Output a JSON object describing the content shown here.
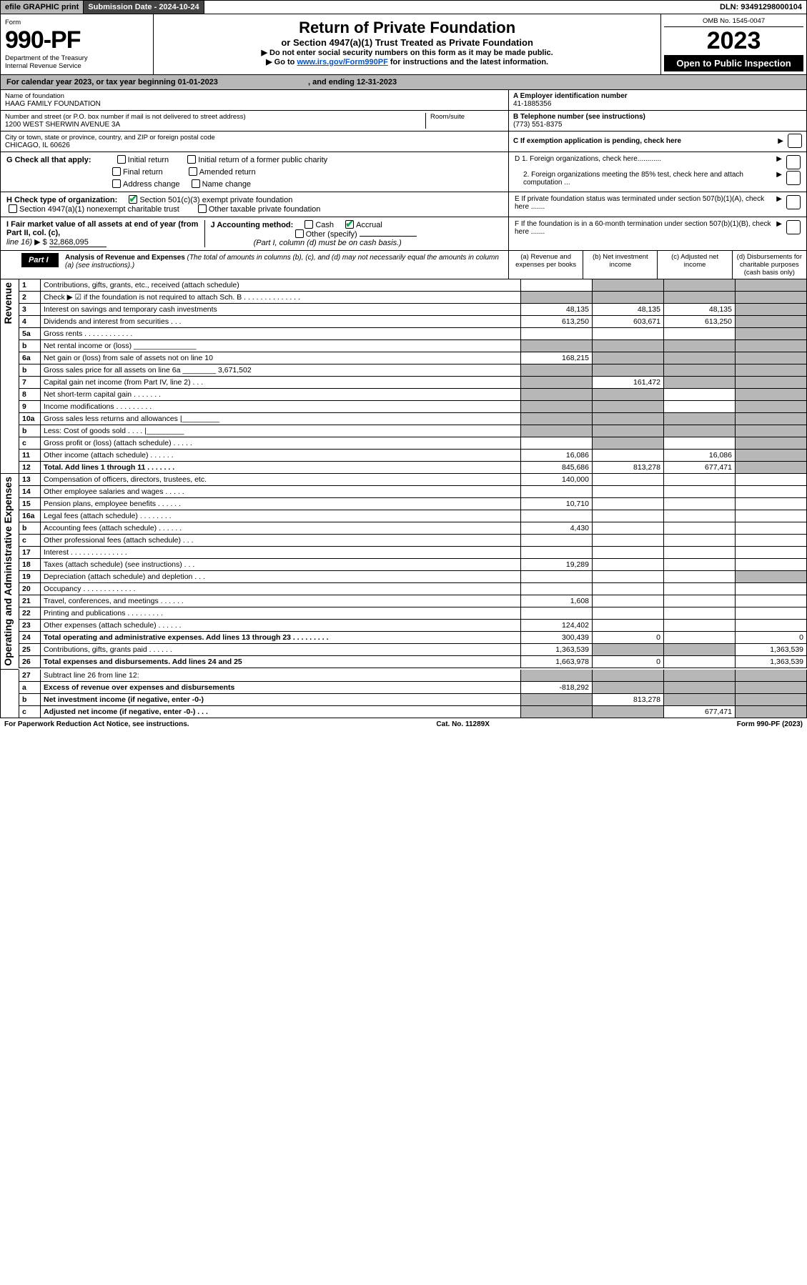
{
  "topbar": {
    "efile": "efile GRAPHIC print",
    "subdate_label": "Submission Date - 2024-10-24",
    "dln": "DLN: 93491298000104"
  },
  "header": {
    "form_word": "Form",
    "form_no": "990-PF",
    "dept": "Department of the Treasury",
    "irs": "Internal Revenue Service",
    "title": "Return of Private Foundation",
    "subtitle": "or Section 4947(a)(1) Trust Treated as Private Foundation",
    "instr1": "▶ Do not enter social security numbers on this form as it may be made public.",
    "instr2_pre": "▶ Go to ",
    "instr2_link": "www.irs.gov/Form990PF",
    "instr2_post": " for instructions and the latest information.",
    "omb": "OMB No. 1545-0047",
    "year": "2023",
    "open": "Open to Public Inspection"
  },
  "calyear": {
    "text_a": "For calendar year 2023, or tax year beginning 01-01-2023",
    "text_b": ", and ending 12-31-2023"
  },
  "entity": {
    "name_lbl": "Name of foundation",
    "name": "HAAG FAMILY FOUNDATION",
    "addr_lbl": "Number and street (or P.O. box number if mail is not delivered to street address)",
    "addr": "1200 WEST SHERWIN AVENUE 3A",
    "room_lbl": "Room/suite",
    "city_lbl": "City or town, state or province, country, and ZIP or foreign postal code",
    "city": "CHICAGO, IL  60626",
    "a_lbl": "A Employer identification number",
    "ein": "41-1885356",
    "b_lbl": "B Telephone number (see instructions)",
    "phone": "(773) 551-8375",
    "c_lbl": "C If exemption application is pending, check here"
  },
  "g": {
    "lbl": "G Check all that apply:",
    "c1": "Initial return",
    "c2": "Initial return of a former public charity",
    "c3": "Final return",
    "c4": "Amended return",
    "c5": "Address change",
    "c6": "Name change",
    "d1": "D 1. Foreign organizations, check here............",
    "d2": "2. Foreign organizations meeting the 85% test, check here and attach computation ...",
    "e": "E  If private foundation status was terminated under section 507(b)(1)(A), check here .......",
    "f": "F  If the foundation is in a 60-month termination under section 507(b)(1)(B), check here ......."
  },
  "h": {
    "lbl": "H Check type of organization:",
    "c1": "Section 501(c)(3) exempt private foundation",
    "c2": "Section 4947(a)(1) nonexempt charitable trust",
    "c3": "Other taxable private foundation"
  },
  "i": {
    "lbl": "I Fair market value of all assets at end of year (from Part II, col. (c),",
    "line": "line 16)",
    "amt": "32,868,095"
  },
  "j": {
    "lbl": "J Accounting method:",
    "cash": "Cash",
    "accr": "Accrual",
    "other": "Other (specify)",
    "note": "(Part I, column (d) must be on cash basis.)"
  },
  "part1": {
    "label": "Part I",
    "title": "Analysis of Revenue and Expenses",
    "title_note": " (The total of amounts in columns (b), (c), and (d) may not necessarily equal the amounts in column (a) (see instructions).)",
    "col_a": "(a)  Revenue and expenses per books",
    "col_b": "(b)  Net investment income",
    "col_c": "(c)  Adjusted net income",
    "col_d": "(d)  Disbursements for charitable purposes (cash basis only)"
  },
  "side": {
    "rev": "Revenue",
    "exp": "Operating and Administrative Expenses"
  },
  "rows": [
    {
      "n": "1",
      "d": "Contributions, gifts, grants, etc., received (attach schedule)",
      "a": "",
      "b": "g",
      "c": "g",
      "dd": "g"
    },
    {
      "n": "2",
      "d": "Check ▶ ☑ if the foundation is not required to attach Sch. B   .   .   .   .   .   .   .   .   .   .   .   .   .   .",
      "a": "g",
      "b": "g",
      "c": "g",
      "dd": "g",
      "bold_not": true
    },
    {
      "n": "3",
      "d": "Interest on savings and temporary cash investments",
      "a": "48,135",
      "b": "48,135",
      "c": "48,135",
      "dd": "g"
    },
    {
      "n": "4",
      "d": "Dividends and interest from securities   .   .   .",
      "a": "613,250",
      "b": "603,671",
      "c": "613,250",
      "dd": "g"
    },
    {
      "n": "5a",
      "d": "Gross rents   .   .   .   .   .   .   .   .   .   .   .   .",
      "a": "",
      "b": "",
      "c": "",
      "dd": "g"
    },
    {
      "n": "b",
      "d": "Net rental income or (loss)  _______________",
      "a": "g",
      "b": "g",
      "c": "g",
      "dd": "g"
    },
    {
      "n": "6a",
      "d": "Net gain or (loss) from sale of assets not on line 10",
      "a": "168,215",
      "b": "g",
      "c": "g",
      "dd": "g"
    },
    {
      "n": "b",
      "d": "Gross sales price for all assets on line 6a ________ 3,671,502",
      "a": "g",
      "b": "g",
      "c": "g",
      "dd": "g"
    },
    {
      "n": "7",
      "d": "Capital gain net income (from Part IV, line 2)   .   .   .",
      "a": "g",
      "b": "161,472",
      "c": "g",
      "dd": "g"
    },
    {
      "n": "8",
      "d": "Net short-term capital gain   .   .   .   .   .   .   .",
      "a": "g",
      "b": "g",
      "c": "",
      "dd": "g"
    },
    {
      "n": "9",
      "d": "Income modifications   .   .   .   .   .   .   .   .   .",
      "a": "g",
      "b": "g",
      "c": "",
      "dd": "g"
    },
    {
      "n": "10a",
      "d": "Gross sales less returns and allowances   |_________",
      "a": "g",
      "b": "g",
      "c": "g",
      "dd": "g"
    },
    {
      "n": "b",
      "d": "Less: Cost of goods sold   .   .   .   .   |_________",
      "a": "g",
      "b": "g",
      "c": "g",
      "dd": "g"
    },
    {
      "n": "c",
      "d": "Gross profit or (loss) (attach schedule)   .   .   .   .   .",
      "a": "",
      "b": "g",
      "c": "",
      "dd": "g"
    },
    {
      "n": "11",
      "d": "Other income (attach schedule)   .   .   .   .   .   .",
      "a": "16,086",
      "b": "",
      "c": "16,086",
      "dd": "g"
    },
    {
      "n": "12",
      "d": "Total. Add lines 1 through 11   .   .   .   .   .   .   .",
      "a": "845,686",
      "b": "813,278",
      "c": "677,471",
      "dd": "g",
      "bold": true
    }
  ],
  "rows_exp": [
    {
      "n": "13",
      "d": "Compensation of officers, directors, trustees, etc.",
      "a": "140,000",
      "b": "",
      "c": "",
      "dd": ""
    },
    {
      "n": "14",
      "d": "Other employee salaries and wages   .   .   .   .   .",
      "a": "",
      "b": "",
      "c": "",
      "dd": ""
    },
    {
      "n": "15",
      "d": "Pension plans, employee benefits   .   .   .   .   .   .",
      "a": "10,710",
      "b": "",
      "c": "",
      "dd": ""
    },
    {
      "n": "16a",
      "d": "Legal fees (attach schedule)   .   .   .   .   .   .   .   .",
      "a": "",
      "b": "",
      "c": "",
      "dd": ""
    },
    {
      "n": "b",
      "d": "Accounting fees (attach schedule)   .   .   .   .   .   .",
      "a": "4,430",
      "b": "",
      "c": "",
      "dd": ""
    },
    {
      "n": "c",
      "d": "Other professional fees (attach schedule)   .   .   .",
      "a": "",
      "b": "",
      "c": "",
      "dd": ""
    },
    {
      "n": "17",
      "d": "Interest   .   .   .   .   .   .   .   .   .   .   .   .   .   .",
      "a": "",
      "b": "",
      "c": "",
      "dd": ""
    },
    {
      "n": "18",
      "d": "Taxes (attach schedule) (see instructions)   .   .   .",
      "a": "19,289",
      "b": "",
      "c": "",
      "dd": ""
    },
    {
      "n": "19",
      "d": "Depreciation (attach schedule) and depletion   .   .   .",
      "a": "",
      "b": "",
      "c": "",
      "dd": "g"
    },
    {
      "n": "20",
      "d": "Occupancy   .   .   .   .   .   .   .   .   .   .   .   .   .",
      "a": "",
      "b": "",
      "c": "",
      "dd": ""
    },
    {
      "n": "21",
      "d": "Travel, conferences, and meetings   .   .   .   .   .   .",
      "a": "1,608",
      "b": "",
      "c": "",
      "dd": ""
    },
    {
      "n": "22",
      "d": "Printing and publications   .   .   .   .   .   .   .   .   .",
      "a": "",
      "b": "",
      "c": "",
      "dd": ""
    },
    {
      "n": "23",
      "d": "Other expenses (attach schedule)   .   .   .   .   .   .",
      "a": "124,402",
      "b": "",
      "c": "",
      "dd": ""
    },
    {
      "n": "24",
      "d": "Total operating and administrative expenses. Add lines 13 through 23   .   .   .   .   .   .   .   .   .",
      "a": "300,439",
      "b": "0",
      "c": "",
      "dd": "0",
      "bold": true
    },
    {
      "n": "25",
      "d": "Contributions, gifts, grants paid   .   .   .   .   .   .",
      "a": "1,363,539",
      "b": "g",
      "c": "g",
      "dd": "1,363,539"
    },
    {
      "n": "26",
      "d": "Total expenses and disbursements. Add lines 24 and 25",
      "a": "1,663,978",
      "b": "0",
      "c": "",
      "dd": "1,363,539",
      "bold": true
    }
  ],
  "rows_net": [
    {
      "n": "27",
      "d": "Subtract line 26 from line 12:",
      "a": "g",
      "b": "g",
      "c": "g",
      "dd": "g"
    },
    {
      "n": "a",
      "d": "Excess of revenue over expenses and disbursements",
      "a": "-818,292",
      "b": "g",
      "c": "g",
      "dd": "g",
      "bold": true
    },
    {
      "n": "b",
      "d": "Net investment income (if negative, enter -0-)",
      "a": "g",
      "b": "813,278",
      "c": "g",
      "dd": "g",
      "bold": true
    },
    {
      "n": "c",
      "d": "Adjusted net income (if negative, enter -0-)   .   .   .",
      "a": "g",
      "b": "g",
      "c": "677,471",
      "dd": "g",
      "bold": true
    }
  ],
  "footer": {
    "left": "For Paperwork Reduction Act Notice, see instructions.",
    "mid": "Cat. No. 11289X",
    "right": "Form 990-PF (2023)"
  }
}
